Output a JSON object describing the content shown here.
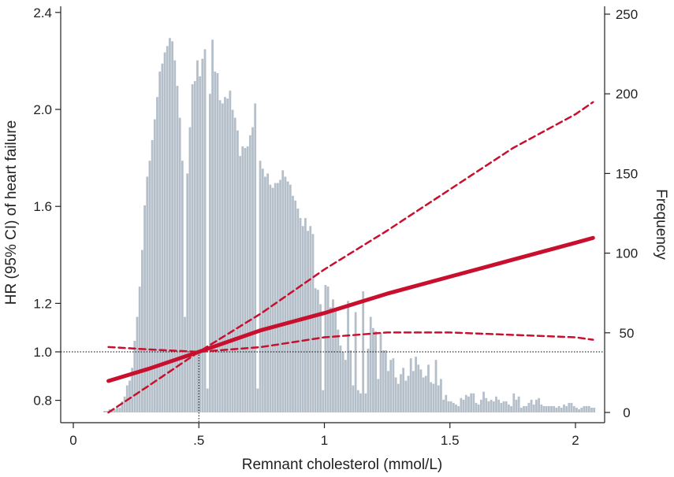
{
  "chart_data": {
    "type": "line",
    "title": "",
    "xlabel": "Remnant cholesterol (mmol/L)",
    "ylabel_left": "HR (95% CI) of heart failure",
    "ylabel_right": "Frequency",
    "xlim": [
      0,
      2.08
    ],
    "ylim_left": [
      0.75,
      2.45
    ],
    "ylim_right": [
      0,
      250
    ],
    "x_ticks": [
      {
        "value": 0,
        "label": "0"
      },
      {
        "value": 0.5,
        "label": ".5"
      },
      {
        "value": 1,
        "label": "1"
      },
      {
        "value": 1.5,
        "label": "1.5"
      },
      {
        "value": 2,
        "label": "2"
      }
    ],
    "y_left_ticks": [
      {
        "value": 0.8,
        "label": "0.8"
      },
      {
        "value": 1.0,
        "label": "1.0"
      },
      {
        "value": 1.2,
        "label": "1.2"
      },
      {
        "value": 1.6,
        "label": "1.6"
      },
      {
        "value": 2.0,
        "label": "2.0"
      },
      {
        "value": 2.4,
        "label": "2.4"
      }
    ],
    "y_right_ticks": [
      {
        "value": 0,
        "label": "0"
      },
      {
        "value": 50,
        "label": "50"
      },
      {
        "value": 100,
        "label": "100"
      },
      {
        "value": 150,
        "label": "150"
      },
      {
        "value": 200,
        "label": "200"
      },
      {
        "value": 250,
        "label": "250"
      }
    ],
    "reference": {
      "x": 0.5,
      "y": 1.0
    },
    "colors": {
      "hr_line": "#c8102e",
      "histogram": "#b4bfca",
      "reference": "#000000",
      "axis": "#222222"
    },
    "grid": false,
    "series": [
      {
        "style": "solid",
        "x": [
          0.14,
          0.3,
          0.5,
          0.75,
          1.0,
          1.25,
          1.5,
          1.75,
          2.0,
          2.07
        ],
        "y": [
          0.88,
          0.93,
          1.0,
          1.09,
          1.16,
          1.24,
          1.31,
          1.38,
          1.45,
          1.47
        ]
      },
      {
        "style": "dashed",
        "x": [
          0.14,
          0.3,
          0.5,
          0.75,
          1.0,
          1.25,
          1.5,
          1.75,
          2.0,
          2.07
        ],
        "y": [
          0.75,
          0.86,
          1.0,
          1.16,
          1.34,
          1.5,
          1.67,
          1.84,
          1.98,
          2.03
        ]
      },
      {
        "style": "dashed",
        "x": [
          0.14,
          0.3,
          0.5,
          0.75,
          1.0,
          1.25,
          1.5,
          1.75,
          2.0,
          2.07
        ],
        "y": [
          1.02,
          1.01,
          1.0,
          1.02,
          1.06,
          1.08,
          1.08,
          1.07,
          1.06,
          1.05
        ]
      }
    ],
    "histogram": {
      "bin_width": 0.01,
      "x_start": 0.12,
      "counts": [
        1,
        1,
        2,
        1,
        2,
        3,
        3,
        7,
        10,
        17,
        20,
        28,
        45,
        60,
        79,
        102,
        130,
        148,
        158,
        171,
        184,
        198,
        214,
        219,
        226,
        230,
        235,
        233,
        221,
        205,
        185,
        158,
        60,
        150,
        179,
        206,
        208,
        221,
        211,
        222,
        228,
        15,
        200,
        234,
        214,
        213,
        196,
        194,
        198,
        197,
        202,
        190,
        185,
        177,
        161,
        167,
        166,
        167,
        174,
        179,
        194,
        15,
        158,
        153,
        148,
        150,
        143,
        141,
        144,
        144,
        146,
        152,
        148,
        145,
        143,
        136,
        133,
        128,
        122,
        117,
        122,
        114,
        117,
        112,
        78,
        77,
        68,
        14,
        80,
        79,
        66,
        71,
        64,
        52,
        42,
        38,
        33,
        70,
        39,
        17,
        63,
        14,
        12,
        76,
        12,
        40,
        60,
        53,
        51,
        21,
        50,
        39,
        39,
        26,
        33,
        34,
        22,
        18,
        24,
        28,
        20,
        23,
        34,
        26,
        35,
        30,
        27,
        22,
        23,
        30,
        19,
        18,
        33,
        17,
        21,
        8,
        11,
        7,
        7,
        6,
        5,
        4,
        9,
        8,
        11,
        10,
        12,
        12,
        6,
        5,
        8,
        13,
        9,
        7,
        8,
        7,
        10,
        8,
        6,
        7,
        7,
        5,
        4,
        12,
        8,
        10,
        3,
        4,
        4,
        6,
        8,
        5,
        8,
        9,
        5,
        4,
        4,
        4,
        4,
        4,
        3,
        4,
        3,
        5,
        4,
        6,
        6,
        4,
        3,
        2,
        3,
        4,
        4,
        4,
        3,
        3
      ]
    }
  }
}
